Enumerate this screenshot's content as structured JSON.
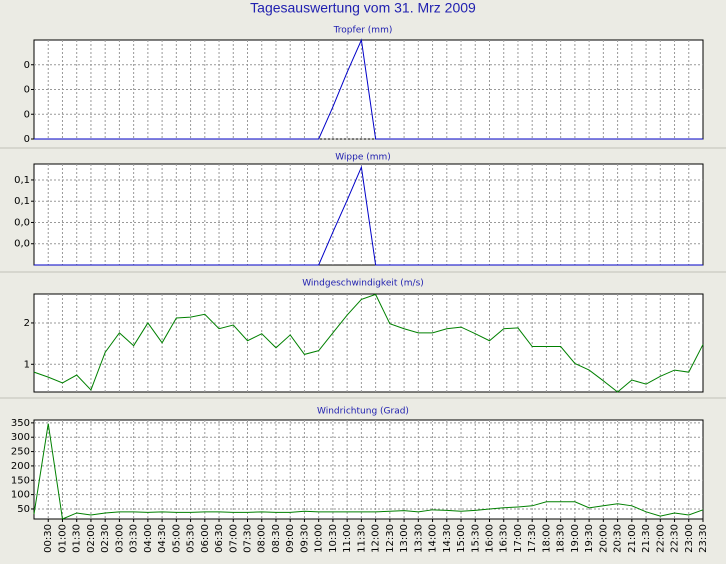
{
  "page_title": "Tagesauswertung vom 31. Mrz 2009",
  "chart_data": [
    {
      "type": "line",
      "title": "Tropfer (mm)",
      "color": "#0000c8",
      "values": [
        0,
        0,
        0,
        0,
        0,
        0,
        0,
        0,
        0,
        0,
        0,
        0,
        0,
        0,
        0,
        0,
        0,
        0,
        0,
        0,
        0,
        0.13,
        0.27,
        0.4,
        0,
        0,
        0,
        0,
        0,
        0,
        0,
        0,
        0,
        0,
        0,
        0,
        0,
        0,
        0,
        0,
        0,
        0,
        0,
        0,
        0,
        0,
        0,
        0
      ],
      "ylim": [
        0,
        0.4
      ],
      "yticks": [
        0,
        {
          "value": 0.1,
          "label": "0"
        },
        {
          "value": 0.2,
          "label": "0"
        },
        {
          "value": 0.3,
          "label": "0"
        }
      ],
      "grid": true
    },
    {
      "type": "line",
      "title": "Wippe (mm)",
      "color": "#0000c8",
      "values": [
        0,
        0,
        0,
        0,
        0,
        0,
        0,
        0,
        0,
        0,
        0,
        0,
        0,
        0,
        0,
        0,
        0,
        0,
        0,
        0,
        0,
        0.031,
        0.061,
        0.092,
        0,
        0,
        0,
        0,
        0,
        0,
        0,
        0,
        0,
        0,
        0,
        0,
        0,
        0,
        0,
        0,
        0,
        0,
        0,
        0,
        0,
        0,
        0,
        0
      ],
      "ylim": [
        0,
        0.095
      ],
      "yticks": [
        {
          "value": 0.02,
          "label": "0,0"
        },
        {
          "value": 0.04,
          "label": "0,0"
        },
        {
          "value": 0.06,
          "label": "0,1"
        },
        {
          "value": 0.08,
          "label": "0,1"
        }
      ],
      "grid": true
    },
    {
      "type": "line",
      "title": "Windgeschwindigkeit (m/s)",
      "color": "#008000",
      "values": [
        0.81,
        0.69,
        0.55,
        0.74,
        0.38,
        1.29,
        1.76,
        1.45,
        2.0,
        1.52,
        2.12,
        2.14,
        2.21,
        1.86,
        1.95,
        1.57,
        1.74,
        1.4,
        1.71,
        1.24,
        1.33,
        1.76,
        2.19,
        2.57,
        2.69,
        1.98,
        1.86,
        1.76,
        1.76,
        1.86,
        1.9,
        1.74,
        1.57,
        1.86,
        1.88,
        1.43,
        1.43,
        1.43,
        1.02,
        0.86,
        0.6,
        0.33,
        0.62,
        0.52,
        0.71,
        0.86,
        0.81,
        1.48
      ],
      "ylim": [
        0.33,
        2.7
      ],
      "yticks": [
        1,
        2
      ],
      "grid": true
    },
    {
      "type": "line",
      "title": "Windrichtung (Grad)",
      "color": "#008000",
      "categories": [
        null,
        "00:30",
        "01:00",
        "01:30",
        "02:00",
        "02:30",
        "03:00",
        "03:30",
        "04:00",
        "04:30",
        "05:00",
        "05:30",
        "06:00",
        "06:30",
        "07:00",
        "07:30",
        "08:00",
        "08:30",
        "09:00",
        "09:30",
        "10:00",
        "10:30",
        "11:00",
        "11:30",
        "12:00",
        "12:30",
        "13:00",
        "13:30",
        "14:00",
        "14:30",
        "15:00",
        "15:30",
        "16:00",
        "16:30",
        "17:00",
        "17:30",
        "18:00",
        "18:30",
        "19:00",
        "19:30",
        "20:00",
        "20:30",
        "21:00",
        "21:30",
        "22:00",
        "22:30",
        "23:00",
        "23:30"
      ],
      "values": [
        32,
        347,
        15,
        36,
        29,
        36,
        40,
        40,
        38,
        40,
        38,
        38,
        40,
        40,
        38,
        38,
        40,
        38,
        38,
        42,
        40,
        40,
        40,
        40,
        40,
        42,
        44,
        40,
        47,
        45,
        42,
        45,
        50,
        54,
        57,
        61,
        75,
        75,
        75,
        54,
        61,
        68,
        61,
        40,
        25,
        36,
        29,
        47
      ],
      "ylim": [
        15,
        360
      ],
      "yticks": [
        50,
        100,
        150,
        200,
        250,
        300,
        350
      ],
      "grid": true
    }
  ]
}
